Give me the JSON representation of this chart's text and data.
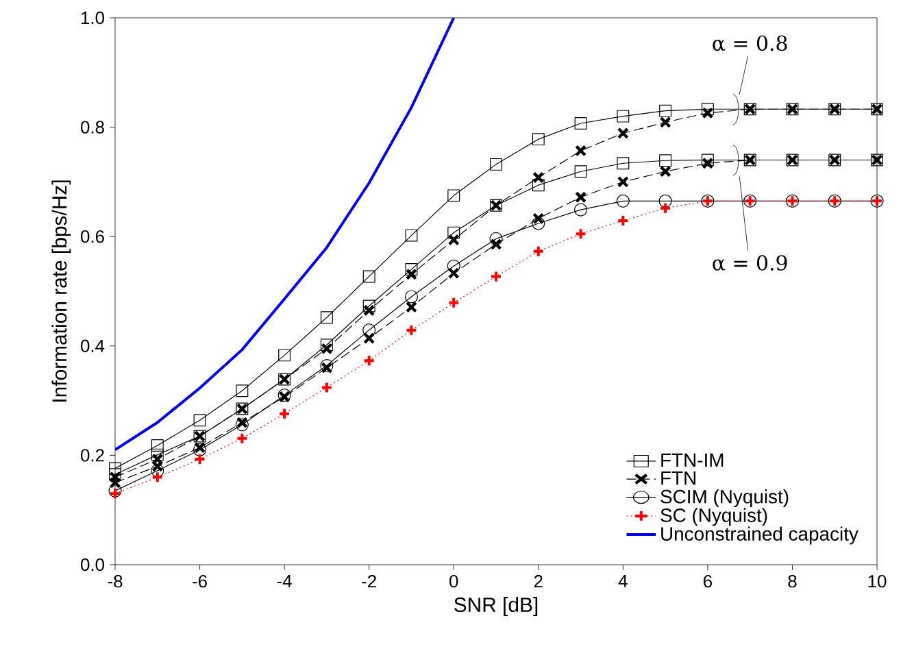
{
  "chart_data": {
    "type": "line",
    "xlabel": "SNR [dB]",
    "ylabel": "Information rate [bps/Hz]",
    "x": [
      -8,
      -7,
      -6,
      -5,
      -4,
      -3,
      -2,
      -1,
      0,
      1,
      2,
      3,
      4,
      5,
      6,
      7,
      8,
      9,
      10
    ],
    "series": [
      {
        "name": "FTN-IM",
        "color": "#000000",
        "marker": "square",
        "line_style": "solid",
        "values": [
          0.176,
          0.218,
          0.264,
          0.318,
          0.383,
          0.452,
          0.527,
          0.602,
          0.675,
          0.732,
          0.778,
          0.807,
          0.82,
          0.83,
          0.833,
          0.833,
          0.833,
          0.833,
          0.833
        ]
      },
      {
        "color": "#000000",
        "marker": "square",
        "line_style": "solid",
        "values": [
          0.165,
          0.201,
          0.235,
          0.285,
          0.339,
          0.402,
          0.473,
          0.54,
          0.607,
          0.657,
          0.694,
          0.719,
          0.734,
          0.739,
          0.74,
          0.74,
          0.74,
          0.74,
          0.74
        ]
      },
      {
        "name": "FTN",
        "color": "#000000",
        "marker": "cross",
        "line_style": "dashed",
        "values": [
          0.16,
          0.193,
          0.235,
          0.285,
          0.339,
          0.395,
          0.465,
          0.531,
          0.594,
          0.657,
          0.708,
          0.757,
          0.789,
          0.809,
          0.826,
          0.833,
          0.833,
          0.833,
          0.833
        ]
      },
      {
        "color": "#000000",
        "marker": "cross",
        "line_style": "dashed",
        "values": [
          0.15,
          0.18,
          0.214,
          0.26,
          0.307,
          0.36,
          0.414,
          0.471,
          0.533,
          0.586,
          0.633,
          0.672,
          0.7,
          0.719,
          0.734,
          0.74,
          0.74,
          0.74,
          0.74
        ]
      },
      {
        "name": "SCIM (Nyquist)",
        "color": "#000000",
        "marker": "circle",
        "line_style": "solid",
        "values": [
          0.135,
          0.172,
          0.21,
          0.256,
          0.31,
          0.364,
          0.429,
          0.49,
          0.546,
          0.596,
          0.624,
          0.649,
          0.665,
          0.665,
          0.665,
          0.665,
          0.665,
          0.665,
          0.665
        ]
      },
      {
        "name": "SC (Nyquist)",
        "color": "#ff0000",
        "marker": "plus",
        "line_style": "dotted",
        "values": [
          0.13,
          0.16,
          0.193,
          0.231,
          0.276,
          0.324,
          0.373,
          0.429,
          0.479,
          0.527,
          0.573,
          0.605,
          0.629,
          0.652,
          0.665,
          0.665,
          0.665,
          0.665,
          0.665
        ]
      },
      {
        "name": "Unconstrained capacity",
        "color": "#0000ff",
        "marker": "none",
        "line_style": "solid",
        "x": [
          -8,
          -7,
          -6,
          -5,
          -4,
          -3,
          -2,
          -1,
          0
        ],
        "values": [
          0.21,
          0.26,
          0.323,
          0.393,
          0.486,
          0.58,
          0.698,
          0.836,
          1.0
        ]
      }
    ],
    "xlim": [
      -8,
      10
    ],
    "ylim": [
      0,
      1.0
    ],
    "xticks": [
      -8,
      -6,
      -4,
      -2,
      0,
      2,
      4,
      6,
      8,
      10
    ],
    "yticks": [
      {
        "value": 0,
        "label": "0.0"
      },
      0.2,
      0.4,
      0.6,
      0.8,
      {
        "value": 1,
        "label": "1.0"
      }
    ],
    "grid": false,
    "legend": "bottom right",
    "annotations": [
      "α = 0.8",
      "α = 0.9"
    ]
  }
}
